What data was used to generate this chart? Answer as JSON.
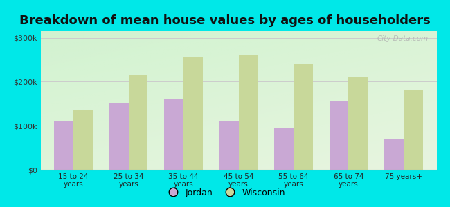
{
  "title": "Breakdown of mean house values by ages of householders",
  "categories": [
    "15 to 24\nyears",
    "25 to 34\nyears",
    "35 to 44\nyears",
    "45 to 54\nyears",
    "55 to 64\nyears",
    "65 to 74\nyears",
    "75 years+"
  ],
  "jordan": [
    110000,
    150000,
    160000,
    110000,
    95000,
    155000,
    70000
  ],
  "wisconsin": [
    135000,
    215000,
    255000,
    260000,
    240000,
    210000,
    180000
  ],
  "jordan_color": "#c9a8d4",
  "wisconsin_color": "#c8d89a",
  "background_color": "#00e8e8",
  "yticks": [
    0,
    100000,
    200000,
    300000
  ],
  "ylabels": [
    "$0",
    "$100k",
    "$200k",
    "$300k"
  ],
  "ylim": [
    0,
    315000
  ],
  "legend_jordan": "Jordan",
  "legend_wisconsin": "Wisconsin",
  "title_fontsize": 13,
  "watermark": "City-Data.com"
}
